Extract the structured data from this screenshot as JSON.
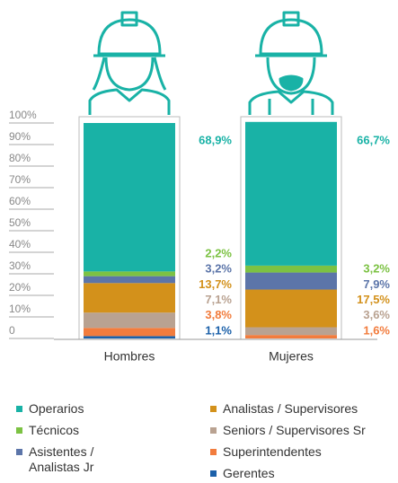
{
  "chart_data": {
    "type": "stacked_bar",
    "categories": [
      "Hombres",
      "Mujeres"
    ],
    "ylim": [
      0,
      100
    ],
    "yticks": [
      0,
      {
        "value": 10,
        "label": "10%"
      },
      {
        "value": 20,
        "label": "20%"
      },
      {
        "value": 30,
        "label": "30%"
      },
      {
        "value": 40,
        "label": "40%"
      },
      {
        "value": 50,
        "label": "50%"
      },
      {
        "value": 60,
        "label": "60%"
      },
      {
        "value": 70,
        "label": "70%"
      },
      {
        "value": 80,
        "label": "80%"
      },
      {
        "value": 90,
        "label": "90%"
      },
      {
        "value": 100,
        "label": "100%"
      }
    ],
    "series": [
      {
        "name": "Operarios",
        "color": "#19b2a6",
        "values": [
          68.9,
          66.7
        ],
        "value_labels": [
          "68,9%",
          "66,7%"
        ]
      },
      {
        "name": "Técnicos",
        "color": "#7cc243",
        "values": [
          2.2,
          3.2
        ],
        "value_labels": [
          "2,2%",
          "3,2%"
        ]
      },
      {
        "name": "Asistentes / Analistas Jr",
        "color": "#5c75a9",
        "values": [
          3.2,
          7.9
        ],
        "value_labels": [
          "3,2%",
          "7,9%"
        ]
      },
      {
        "name": "Analistas / Supervisores",
        "color": "#d3911b",
        "values": [
          13.7,
          17.5
        ],
        "value_labels": [
          "13,7%",
          "17,5%"
        ]
      },
      {
        "name": "Seniors / Supervisores Sr",
        "color": "#b9a291",
        "values": [
          7.1,
          3.6
        ],
        "value_labels": [
          "7,1%",
          "3,6%"
        ]
      },
      {
        "name": "Superintendentes",
        "color": "#f27c3d",
        "values": [
          3.8,
          1.6
        ],
        "value_labels": [
          "3,8%",
          "1,6%"
        ]
      },
      {
        "name": "Gerentes",
        "color": "#1b60a9",
        "values": [
          1.1,
          null
        ],
        "value_labels": [
          "1,1%",
          null
        ]
      }
    ]
  }
}
